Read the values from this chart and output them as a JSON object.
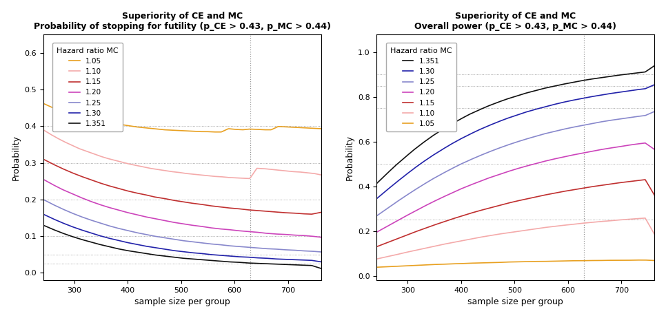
{
  "title_left": "Superiority of CE and MC\nProbability of stopping for futility (p_CE > 0.43, p_MC > 0.44)",
  "title_right": "Superiority of CE and MC\nOverall power (p_CE > 0.43, p_MC > 0.44)",
  "xlabel": "sample size per group",
  "ylabel": "Probability",
  "x_min": 242,
  "x_max": 762,
  "vline_x": 630,
  "colors": {
    "1.05": "#E8A020",
    "1.10": "#F4AAAA",
    "1.15": "#C03030",
    "1.20": "#CC44BB",
    "1.25": "#8888CC",
    "1.30": "#2222AA",
    "1.351": "#111111"
  },
  "left_ylim": [
    -0.02,
    0.65
  ],
  "right_ylim": [
    -0.02,
    1.08
  ],
  "left_yticks": [
    0.0,
    0.1,
    0.2,
    0.3,
    0.4,
    0.5,
    0.6
  ],
  "right_yticks": [
    0.0,
    0.2,
    0.4,
    0.6,
    0.8,
    1.0
  ],
  "xticks": [
    300,
    400,
    500,
    600,
    700
  ],
  "left_hlines": [
    0.025,
    0.05,
    0.1,
    0.2,
    0.3,
    0.4
  ],
  "right_hlines": [
    0.25,
    0.5,
    0.75,
    0.85,
    0.9
  ],
  "left_legend_order": [
    "1.05",
    "1.10",
    "1.15",
    "1.20",
    "1.25",
    "1.30",
    "1.351"
  ],
  "right_legend_order": [
    "1.351",
    "1.30",
    "1.25",
    "1.20",
    "1.15",
    "1.10",
    "1.05"
  ],
  "left_curves": {
    "1.05": [
      0.462,
      0.453,
      0.445,
      0.438,
      0.432,
      0.427,
      0.422,
      0.418,
      0.414,
      0.41,
      0.407,
      0.404,
      0.401,
      0.398,
      0.396,
      0.394,
      0.392,
      0.39,
      0.389,
      0.388,
      0.387,
      0.386,
      0.385,
      0.385,
      0.384,
      0.384,
      0.393,
      0.391,
      0.39,
      0.392,
      0.391,
      0.39,
      0.39,
      0.399,
      0.398,
      0.397,
      0.396,
      0.395,
      0.394,
      0.393
    ],
    "1.10": [
      0.39,
      0.378,
      0.367,
      0.357,
      0.348,
      0.339,
      0.332,
      0.325,
      0.318,
      0.312,
      0.307,
      0.302,
      0.297,
      0.293,
      0.289,
      0.285,
      0.282,
      0.279,
      0.276,
      0.274,
      0.271,
      0.269,
      0.267,
      0.265,
      0.263,
      0.262,
      0.26,
      0.259,
      0.258,
      0.257,
      0.285,
      0.284,
      0.282,
      0.28,
      0.278,
      0.276,
      0.275,
      0.273,
      0.271,
      0.267
    ],
    "1.15": [
      0.31,
      0.297,
      0.285,
      0.274,
      0.264,
      0.255,
      0.246,
      0.238,
      0.231,
      0.224,
      0.218,
      0.213,
      0.207,
      0.203,
      0.198,
      0.194,
      0.19,
      0.187,
      0.183,
      0.18,
      0.177,
      0.175,
      0.172,
      0.17,
      0.168,
      0.166,
      0.164,
      0.163,
      0.161,
      0.16,
      0.165
    ],
    "1.20": [
      0.255,
      0.241,
      0.228,
      0.217,
      0.206,
      0.196,
      0.187,
      0.179,
      0.172,
      0.165,
      0.159,
      0.153,
      0.148,
      0.143,
      0.138,
      0.134,
      0.13,
      0.127,
      0.123,
      0.12,
      0.118,
      0.115,
      0.113,
      0.111,
      0.108,
      0.106,
      0.105,
      0.103,
      0.102,
      0.1,
      0.097
    ],
    "1.25": [
      0.2,
      0.187,
      0.175,
      0.164,
      0.154,
      0.145,
      0.137,
      0.129,
      0.122,
      0.116,
      0.11,
      0.105,
      0.1,
      0.096,
      0.092,
      0.088,
      0.085,
      0.082,
      0.079,
      0.077,
      0.074,
      0.072,
      0.07,
      0.068,
      0.066,
      0.065,
      0.063,
      0.062,
      0.06,
      0.059,
      0.057
    ],
    "1.30": [
      0.16,
      0.148,
      0.137,
      0.127,
      0.118,
      0.11,
      0.102,
      0.095,
      0.089,
      0.083,
      0.078,
      0.073,
      0.069,
      0.065,
      0.061,
      0.058,
      0.055,
      0.053,
      0.05,
      0.048,
      0.046,
      0.044,
      0.043,
      0.041,
      0.04,
      0.038,
      0.037,
      0.036,
      0.035,
      0.034,
      0.03
    ],
    "1.351": [
      0.13,
      0.119,
      0.109,
      0.1,
      0.092,
      0.085,
      0.078,
      0.072,
      0.066,
      0.061,
      0.057,
      0.053,
      0.049,
      0.046,
      0.043,
      0.04,
      0.038,
      0.036,
      0.034,
      0.032,
      0.03,
      0.029,
      0.027,
      0.026,
      0.025,
      0.024,
      0.023,
      0.022,
      0.021,
      0.02,
      0.012
    ]
  },
  "right_curves": {
    "1.351": [
      0.413,
      0.453,
      0.492,
      0.528,
      0.563,
      0.595,
      0.625,
      0.652,
      0.677,
      0.7,
      0.722,
      0.741,
      0.759,
      0.775,
      0.79,
      0.803,
      0.816,
      0.827,
      0.838,
      0.847,
      0.856,
      0.864,
      0.872,
      0.879,
      0.885,
      0.891,
      0.897,
      0.902,
      0.907,
      0.912,
      0.94
    ],
    "1.30": [
      0.345,
      0.38,
      0.414,
      0.447,
      0.479,
      0.509,
      0.537,
      0.563,
      0.588,
      0.611,
      0.632,
      0.652,
      0.67,
      0.687,
      0.703,
      0.717,
      0.731,
      0.743,
      0.754,
      0.765,
      0.775,
      0.784,
      0.792,
      0.8,
      0.807,
      0.814,
      0.82,
      0.826,
      0.832,
      0.837,
      0.855
    ],
    "1.25": [
      0.268,
      0.297,
      0.326,
      0.354,
      0.381,
      0.407,
      0.432,
      0.455,
      0.477,
      0.498,
      0.517,
      0.535,
      0.552,
      0.568,
      0.583,
      0.597,
      0.61,
      0.622,
      0.634,
      0.644,
      0.654,
      0.663,
      0.671,
      0.679,
      0.687,
      0.694,
      0.7,
      0.706,
      0.712,
      0.717,
      0.735
    ],
    "1.20": [
      0.195,
      0.218,
      0.241,
      0.264,
      0.286,
      0.308,
      0.329,
      0.349,
      0.368,
      0.387,
      0.404,
      0.42,
      0.436,
      0.45,
      0.464,
      0.477,
      0.489,
      0.5,
      0.511,
      0.521,
      0.53,
      0.539,
      0.547,
      0.555,
      0.563,
      0.57,
      0.576,
      0.583,
      0.589,
      0.594,
      0.565
    ],
    "1.15": [
      0.13,
      0.146,
      0.162,
      0.178,
      0.194,
      0.209,
      0.224,
      0.238,
      0.252,
      0.265,
      0.278,
      0.29,
      0.301,
      0.312,
      0.323,
      0.333,
      0.342,
      0.351,
      0.36,
      0.368,
      0.376,
      0.383,
      0.39,
      0.397,
      0.403,
      0.409,
      0.415,
      0.42,
      0.425,
      0.43,
      0.36
    ],
    "1.10": [
      0.075,
      0.084,
      0.093,
      0.103,
      0.112,
      0.121,
      0.13,
      0.139,
      0.147,
      0.155,
      0.163,
      0.171,
      0.178,
      0.185,
      0.191,
      0.197,
      0.203,
      0.209,
      0.215,
      0.22,
      0.225,
      0.229,
      0.234,
      0.238,
      0.242,
      0.245,
      0.249,
      0.252,
      0.255,
      0.258,
      0.185
    ],
    "1.05": [
      0.038,
      0.04,
      0.042,
      0.044,
      0.046,
      0.048,
      0.05,
      0.051,
      0.053,
      0.054,
      0.056,
      0.057,
      0.058,
      0.059,
      0.061,
      0.062,
      0.063,
      0.064,
      0.064,
      0.065,
      0.066,
      0.067,
      0.067,
      0.068,
      0.068,
      0.069,
      0.069,
      0.069,
      0.07,
      0.07,
      0.068
    ]
  }
}
